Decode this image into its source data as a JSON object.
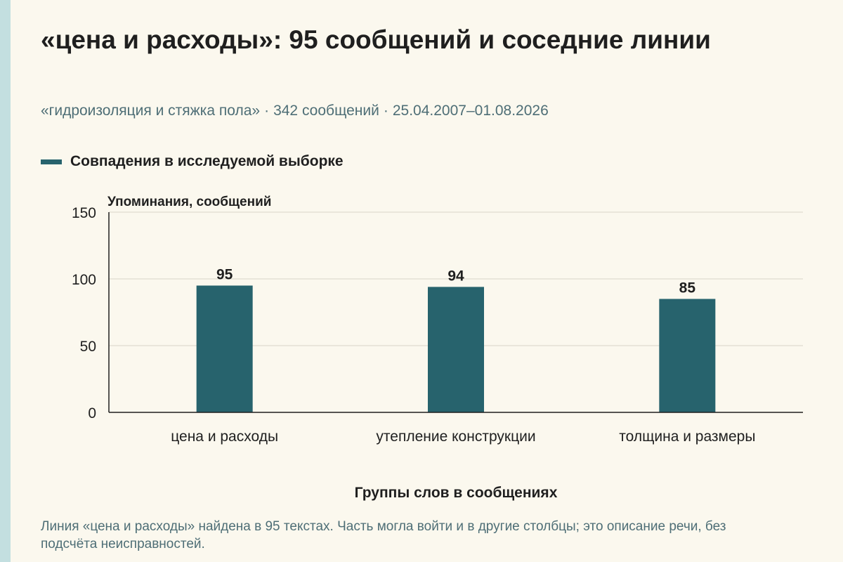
{
  "header": {
    "title": "«цена и расходы»: 95 сообщений и соседние линии",
    "subtitle_topic": "«гидроизоляция и стяжка пола»",
    "subtitle_count": "342 сообщений",
    "subtitle_dates": "25.04.2007–01.08.2026",
    "subtitle_separator": "·"
  },
  "legend": {
    "label": "Совпадения в исследуемой выборке"
  },
  "chart_data": {
    "type": "bar",
    "title": "",
    "ylabel": "Упоминания, сообщений",
    "xlabel": "Группы слов в сообщениях",
    "categories": [
      "цена и расходы",
      "утепление конструкции",
      "толщина и размеры"
    ],
    "series": [
      {
        "name": "Совпадения в исследуемой выборке",
        "values": [
          95,
          94,
          85
        ],
        "color": "#27636d"
      }
    ],
    "ylim": [
      0,
      150
    ],
    "yticks": [
      0,
      50,
      100,
      150
    ],
    "grid": true,
    "legend_position": "top-left",
    "data_labels": true
  },
  "footnote": {
    "text": "Линия «цена и расходы» найдена в 95 текстах. Часть могла войти и в другие столбцы; это описание речи, без подсчёта неисправностей."
  },
  "colors": {
    "bar": "#27636d",
    "grid": "#d8d4c8",
    "axis": "#1f1f1f",
    "muted_text": "#4e6e76",
    "background": "#fbf8ee",
    "accent_strip": "#c3dfe0"
  }
}
